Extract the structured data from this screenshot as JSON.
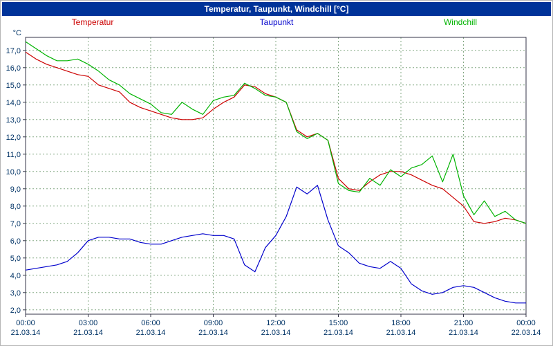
{
  "title": "Temperatur, Taupunkt, Windchill [°C]",
  "colors": {
    "title_bar_bg": "#003399",
    "title_text": "#ffffff",
    "grid": "#84a884",
    "frame": "#333347",
    "tick_text": "#003366",
    "plot_bg": "#ffffff"
  },
  "chart_data": {
    "type": "line",
    "title": "Temperatur, Taupunkt, Windchill [°C]",
    "ylabel": "°C",
    "xlabel": "",
    "xlim": [
      0,
      24
    ],
    "ylim": [
      1.75,
      17.75
    ],
    "grid": true,
    "legend_position": "top",
    "yticks": [
      2,
      3,
      4,
      5,
      6,
      7,
      8,
      9,
      10,
      11,
      12,
      13,
      14,
      15,
      16,
      17
    ],
    "ytick_labels": [
      "2,0",
      "3,0",
      "4,0",
      "5,0",
      "6,0",
      "7,0",
      "8,0",
      "9,0",
      "10,0",
      "11,0",
      "12,0",
      "13,0",
      "14,0",
      "15,0",
      "16,0",
      "17,0"
    ],
    "xticks": [
      0,
      3,
      6,
      9,
      12,
      15,
      18,
      21,
      24
    ],
    "xtick_times": [
      "00:00",
      "03:00",
      "06:00",
      "09:00",
      "12:00",
      "15:00",
      "18:00",
      "21:00",
      "00:00"
    ],
    "xtick_dates": [
      "21.03.14",
      "21.03.14",
      "21.03.14",
      "21.03.14",
      "21.03.14",
      "21.03.14",
      "21.03.14",
      "21.03.14",
      "22.03.14"
    ],
    "x_hours": [
      0,
      0.5,
      1,
      1.5,
      2,
      2.5,
      3,
      3.5,
      4,
      4.5,
      5,
      5.5,
      6,
      6.5,
      7,
      7.5,
      8,
      8.5,
      9,
      9.5,
      10,
      10.5,
      11,
      11.5,
      12,
      12.5,
      13,
      13.5,
      14,
      14.5,
      15,
      15.5,
      16,
      16.5,
      17,
      17.5,
      18,
      18.5,
      19,
      19.5,
      20,
      20.5,
      21,
      21.5,
      22,
      22.5,
      23,
      23.5,
      24
    ],
    "series": [
      {
        "name": "Temperatur",
        "color": "#cc0000",
        "values": [
          16.9,
          16.5,
          16.2,
          16.0,
          15.8,
          15.6,
          15.5,
          15.0,
          14.8,
          14.6,
          14.0,
          13.7,
          13.5,
          13.3,
          13.1,
          13.0,
          13.0,
          13.1,
          13.6,
          14.0,
          14.3,
          15.0,
          14.9,
          14.5,
          14.3,
          14.0,
          12.4,
          12.0,
          12.2,
          11.8,
          9.6,
          9.0,
          8.9,
          9.4,
          9.8,
          10.0,
          10.0,
          9.8,
          9.5,
          9.2,
          9.0,
          8.5,
          8.0,
          7.1,
          7.0,
          7.1,
          7.3,
          7.2,
          7.0
        ]
      },
      {
        "name": "Taupunkt",
        "color": "#0000cc",
        "values": [
          4.3,
          4.4,
          4.5,
          4.6,
          4.8,
          5.3,
          6.0,
          6.2,
          6.2,
          6.1,
          6.1,
          5.9,
          5.8,
          5.8,
          6.0,
          6.2,
          6.3,
          6.4,
          6.3,
          6.3,
          6.1,
          4.6,
          4.2,
          5.6,
          6.3,
          7.4,
          9.1,
          8.7,
          9.2,
          7.2,
          5.7,
          5.3,
          4.7,
          4.5,
          4.4,
          4.8,
          4.4,
          3.5,
          3.1,
          2.9,
          3.0,
          3.3,
          3.4,
          3.3,
          3.0,
          2.7,
          2.5,
          2.4,
          2.4
        ]
      },
      {
        "name": "Windchill",
        "color": "#00b300",
        "values": [
          17.5,
          17.1,
          16.7,
          16.4,
          16.4,
          16.5,
          16.2,
          15.8,
          15.3,
          15.0,
          14.5,
          14.2,
          13.9,
          13.4,
          13.3,
          14.0,
          13.6,
          13.3,
          14.1,
          14.3,
          14.4,
          15.1,
          14.8,
          14.4,
          14.3,
          14.0,
          12.3,
          11.9,
          12.2,
          11.8,
          9.3,
          8.9,
          8.8,
          9.6,
          9.2,
          10.1,
          9.7,
          10.2,
          10.4,
          10.9,
          9.4,
          11.0,
          8.6,
          7.5,
          8.3,
          7.4,
          7.7,
          7.2,
          7.0
        ]
      }
    ]
  }
}
